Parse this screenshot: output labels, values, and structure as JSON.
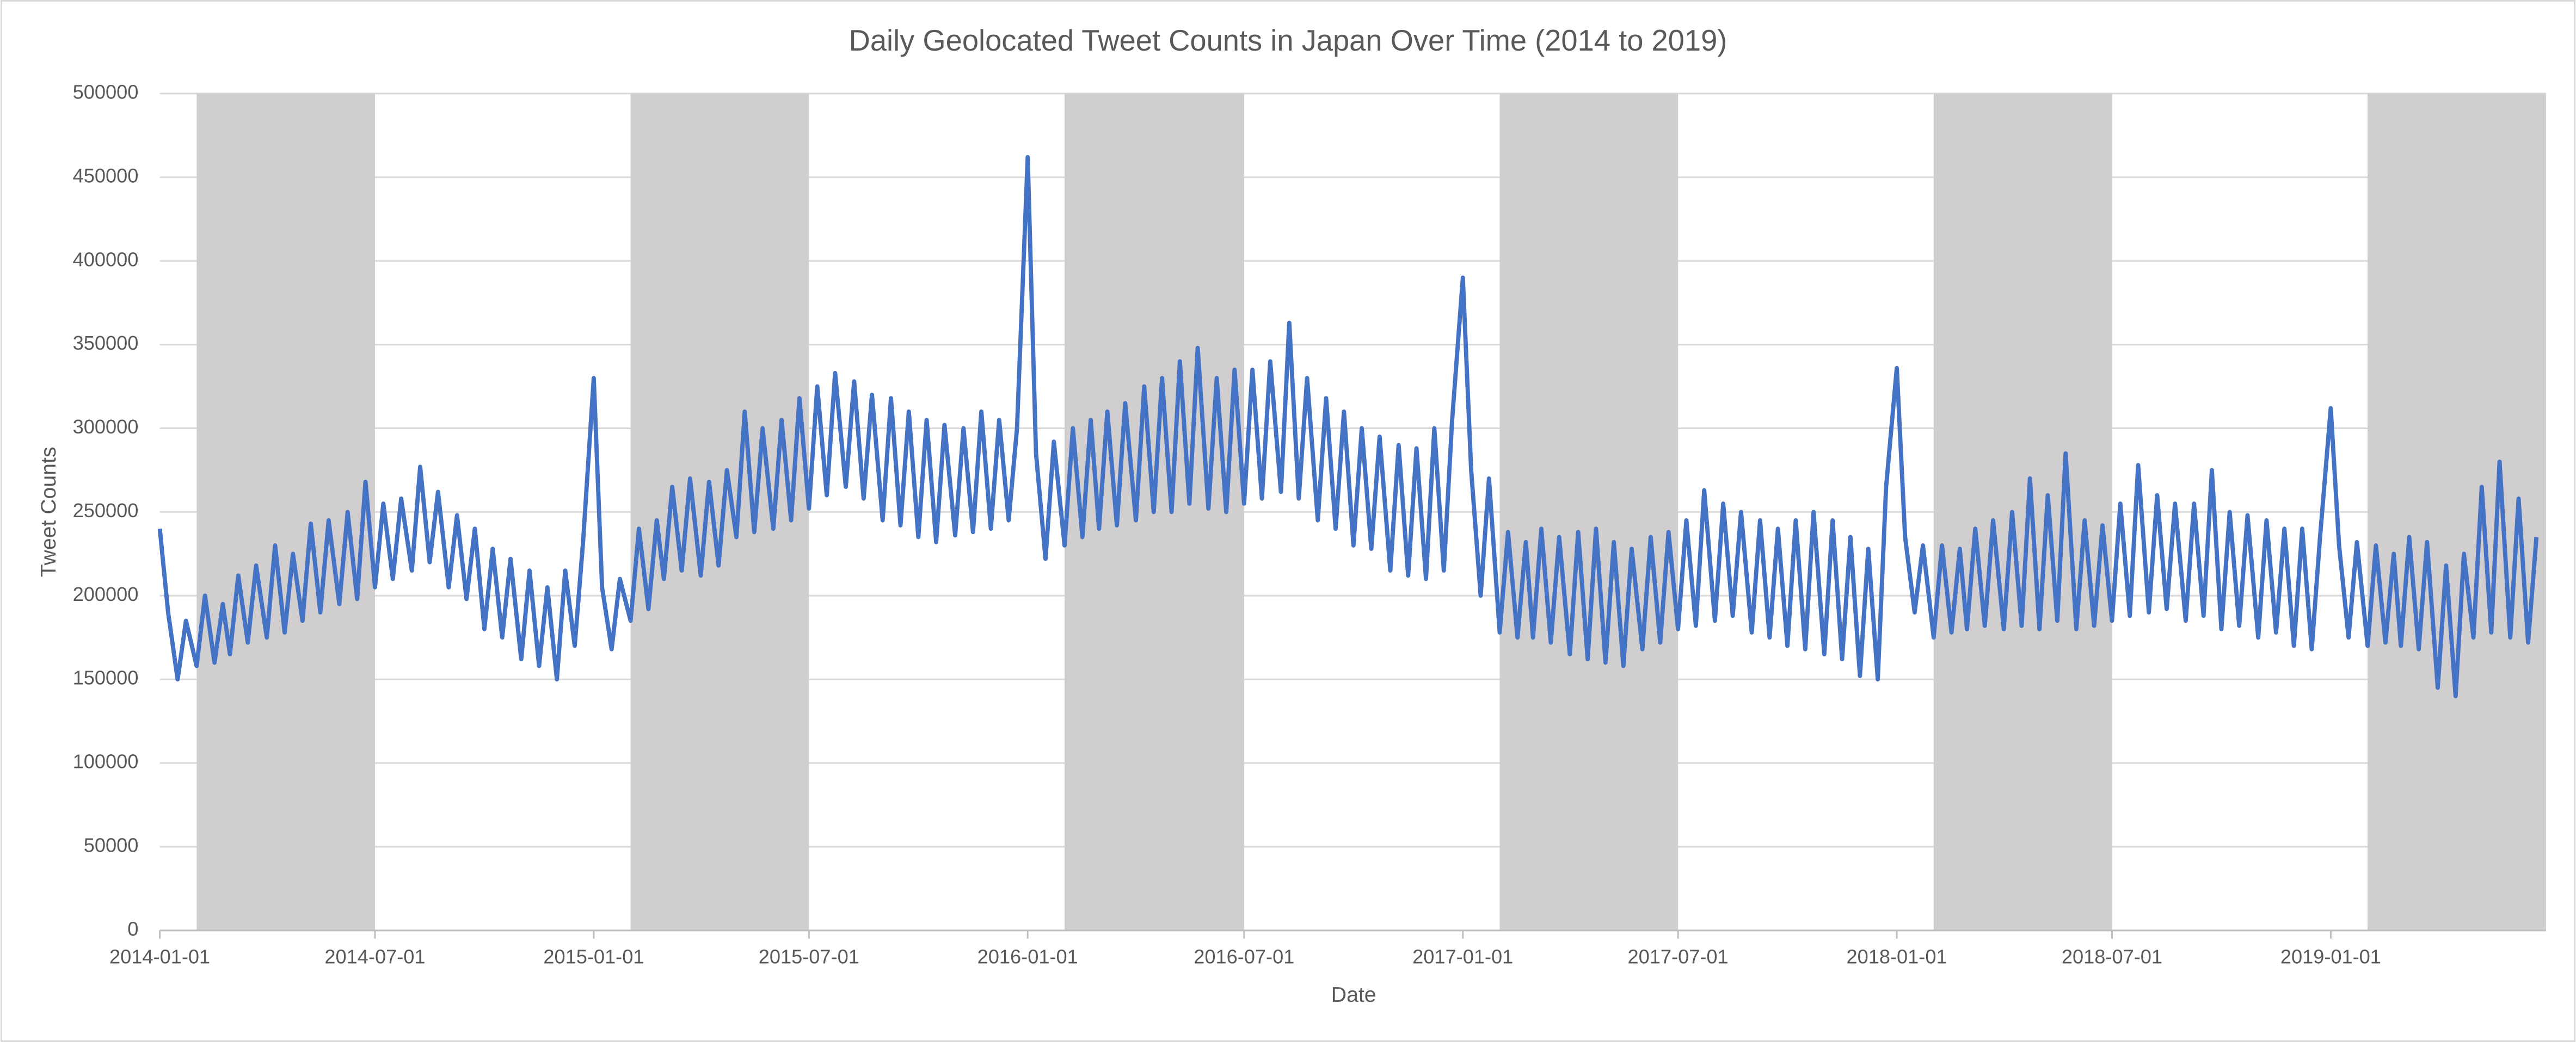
{
  "chart_data": {
    "type": "line",
    "title": "Daily Geolocated Tweet Counts in Japan Over Time (2014 to 2019)",
    "xlabel": "Date",
    "ylabel": "Tweet Counts",
    "xlim": [
      "2014-01-01",
      "2019-07-01"
    ],
    "xticks": [
      "2014-01-01",
      "2014-07-01",
      "2015-01-01",
      "2015-07-01",
      "2016-01-01",
      "2016-07-01",
      "2017-01-01",
      "2017-07-01",
      "2018-01-01",
      "2018-07-01",
      "2019-01-01"
    ],
    "ylim": [
      0,
      500000
    ],
    "yticks": [
      0,
      50000,
      100000,
      150000,
      200000,
      250000,
      300000,
      350000,
      400000,
      450000,
      500000
    ],
    "grid": true,
    "shaded_ranges": [
      [
        "2014-02-01",
        "2014-07-01"
      ],
      [
        "2015-02-01",
        "2015-07-01"
      ],
      [
        "2016-02-01",
        "2016-07-01"
      ],
      [
        "2017-02-01",
        "2017-07-01"
      ],
      [
        "2018-02-01",
        "2018-07-01"
      ],
      [
        "2019-02-01",
        "2019-07-01"
      ]
    ],
    "shade_color": "#d0cece",
    "x": [
      "2014-01-01",
      "2014-01-08",
      "2014-01-16",
      "2014-01-23",
      "2014-02-01",
      "2014-02-08",
      "2014-02-16",
      "2014-02-23",
      "2014-03-01",
      "2014-03-08",
      "2014-03-16",
      "2014-03-23",
      "2014-04-01",
      "2014-04-08",
      "2014-04-16",
      "2014-04-23",
      "2014-05-01",
      "2014-05-08",
      "2014-05-16",
      "2014-05-23",
      "2014-06-01",
      "2014-06-08",
      "2014-06-16",
      "2014-06-23",
      "2014-07-01",
      "2014-07-08",
      "2014-07-16",
      "2014-07-23",
      "2014-08-01",
      "2014-08-08",
      "2014-08-16",
      "2014-08-23",
      "2014-09-01",
      "2014-09-08",
      "2014-09-16",
      "2014-09-23",
      "2014-10-01",
      "2014-10-08",
      "2014-10-16",
      "2014-10-23",
      "2014-11-01",
      "2014-11-08",
      "2014-11-16",
      "2014-11-23",
      "2014-12-01",
      "2014-12-08",
      "2014-12-16",
      "2014-12-23",
      "2015-01-01",
      "2015-01-08",
      "2015-01-16",
      "2015-01-23",
      "2015-02-01",
      "2015-02-08",
      "2015-02-16",
      "2015-02-23",
      "2015-03-01",
      "2015-03-08",
      "2015-03-16",
      "2015-03-23",
      "2015-04-01",
      "2015-04-08",
      "2015-04-16",
      "2015-04-23",
      "2015-05-01",
      "2015-05-08",
      "2015-05-16",
      "2015-05-23",
      "2015-06-01",
      "2015-06-08",
      "2015-06-16",
      "2015-06-23",
      "2015-07-01",
      "2015-07-08",
      "2015-07-16",
      "2015-07-23",
      "2015-08-01",
      "2015-08-08",
      "2015-08-16",
      "2015-08-23",
      "2015-09-01",
      "2015-09-08",
      "2015-09-16",
      "2015-09-23",
      "2015-10-01",
      "2015-10-08",
      "2015-10-16",
      "2015-10-23",
      "2015-11-01",
      "2015-11-08",
      "2015-11-16",
      "2015-11-23",
      "2015-12-01",
      "2015-12-08",
      "2015-12-16",
      "2015-12-23",
      "2016-01-01",
      "2016-01-08",
      "2016-01-16",
      "2016-01-23",
      "2016-02-01",
      "2016-02-08",
      "2016-02-16",
      "2016-02-23",
      "2016-03-01",
      "2016-03-08",
      "2016-03-16",
      "2016-03-23",
      "2016-04-01",
      "2016-04-08",
      "2016-04-16",
      "2016-04-23",
      "2016-05-01",
      "2016-05-08",
      "2016-05-16",
      "2016-05-23",
      "2016-06-01",
      "2016-06-08",
      "2016-06-16",
      "2016-06-23",
      "2016-07-01",
      "2016-07-08",
      "2016-07-16",
      "2016-07-23",
      "2016-08-01",
      "2016-08-08",
      "2016-08-16",
      "2016-08-23",
      "2016-09-01",
      "2016-09-08",
      "2016-09-16",
      "2016-09-23",
      "2016-10-01",
      "2016-10-08",
      "2016-10-16",
      "2016-10-23",
      "2016-11-01",
      "2016-11-08",
      "2016-11-16",
      "2016-11-23",
      "2016-12-01",
      "2016-12-08",
      "2016-12-16",
      "2016-12-23",
      "2017-01-01",
      "2017-01-08",
      "2017-01-16",
      "2017-01-23",
      "2017-02-01",
      "2017-02-08",
      "2017-02-16",
      "2017-02-23",
      "2017-03-01",
      "2017-03-08",
      "2017-03-16",
      "2017-03-23",
      "2017-04-01",
      "2017-04-08",
      "2017-04-16",
      "2017-04-23",
      "2017-05-01",
      "2017-05-08",
      "2017-05-16",
      "2017-05-23",
      "2017-06-01",
      "2017-06-08",
      "2017-06-16",
      "2017-06-23",
      "2017-07-01",
      "2017-07-08",
      "2017-07-16",
      "2017-07-23",
      "2017-08-01",
      "2017-08-08",
      "2017-08-16",
      "2017-08-23",
      "2017-09-01",
      "2017-09-08",
      "2017-09-16",
      "2017-09-23",
      "2017-10-01",
      "2017-10-08",
      "2017-10-16",
      "2017-10-23",
      "2017-11-01",
      "2017-11-08",
      "2017-11-16",
      "2017-11-23",
      "2017-12-01",
      "2017-12-08",
      "2017-12-16",
      "2017-12-23",
      "2018-01-01",
      "2018-01-08",
      "2018-01-16",
      "2018-01-23",
      "2018-02-01",
      "2018-02-08",
      "2018-02-16",
      "2018-02-23",
      "2018-03-01",
      "2018-03-08",
      "2018-03-16",
      "2018-03-23",
      "2018-04-01",
      "2018-04-08",
      "2018-04-16",
      "2018-04-23",
      "2018-05-01",
      "2018-05-08",
      "2018-05-16",
      "2018-05-23",
      "2018-06-01",
      "2018-06-08",
      "2018-06-16",
      "2018-06-23",
      "2018-07-01",
      "2018-07-08",
      "2018-07-16",
      "2018-07-23",
      "2018-08-01",
      "2018-08-08",
      "2018-08-16",
      "2018-08-23",
      "2018-09-01",
      "2018-09-08",
      "2018-09-16",
      "2018-09-23",
      "2018-10-01",
      "2018-10-08",
      "2018-10-16",
      "2018-10-23",
      "2018-11-01",
      "2018-11-08",
      "2018-11-16",
      "2018-11-23",
      "2018-12-01",
      "2018-12-08",
      "2018-12-16",
      "2018-12-23",
      "2019-01-01",
      "2019-01-08",
      "2019-01-16",
      "2019-01-23",
      "2019-02-01",
      "2019-02-08",
      "2019-02-16",
      "2019-02-23",
      "2019-03-01",
      "2019-03-08",
      "2019-03-16",
      "2019-03-23",
      "2019-04-01",
      "2019-04-08",
      "2019-04-16",
      "2019-04-23",
      "2019-05-01",
      "2019-05-08",
      "2019-05-16",
      "2019-05-23",
      "2019-06-01",
      "2019-06-08",
      "2019-06-16",
      "2019-06-23"
    ],
    "series": [
      {
        "name": "Tweet Counts",
        "color": "#4472c4",
        "values": [
          240000,
          190000,
          150000,
          185000,
          158000,
          200000,
          160000,
          195000,
          165000,
          212000,
          172000,
          218000,
          175000,
          230000,
          178000,
          225000,
          185000,
          243000,
          190000,
          245000,
          195000,
          250000,
          198000,
          268000,
          205000,
          255000,
          210000,
          258000,
          215000,
          277000,
          220000,
          262000,
          205000,
          248000,
          198000,
          240000,
          180000,
          228000,
          175000,
          222000,
          162000,
          215000,
          158000,
          205000,
          150000,
          215000,
          170000,
          232000,
          330000,
          205000,
          168000,
          210000,
          185000,
          240000,
          192000,
          245000,
          210000,
          265000,
          215000,
          270000,
          212000,
          268000,
          218000,
          275000,
          235000,
          310000,
          238000,
          300000,
          240000,
          305000,
          245000,
          318000,
          252000,
          325000,
          260000,
          333000,
          265000,
          328000,
          258000,
          320000,
          245000,
          318000,
          242000,
          310000,
          235000,
          305000,
          232000,
          302000,
          236000,
          300000,
          238000,
          310000,
          240000,
          305000,
          245000,
          300000,
          462000,
          285000,
          222000,
          292000,
          230000,
          300000,
          235000,
          305000,
          240000,
          310000,
          242000,
          315000,
          245000,
          325000,
          250000,
          330000,
          250000,
          340000,
          255000,
          348000,
          252000,
          330000,
          250000,
          335000,
          255000,
          335000,
          258000,
          340000,
          262000,
          363000,
          258000,
          330000,
          245000,
          318000,
          240000,
          310000,
          230000,
          300000,
          228000,
          295000,
          215000,
          290000,
          212000,
          288000,
          210000,
          300000,
          215000,
          305000,
          390000,
          275000,
          200000,
          270000,
          178000,
          238000,
          175000,
          232000,
          175000,
          240000,
          172000,
          235000,
          165000,
          238000,
          162000,
          240000,
          160000,
          232000,
          158000,
          228000,
          168000,
          235000,
          172000,
          238000,
          180000,
          245000,
          182000,
          263000,
          185000,
          255000,
          188000,
          250000,
          178000,
          245000,
          175000,
          240000,
          170000,
          245000,
          168000,
          250000,
          165000,
          245000,
          162000,
          235000,
          152000,
          228000,
          150000,
          265000,
          336000,
          235000,
          190000,
          230000,
          175000,
          230000,
          178000,
          228000,
          180000,
          240000,
          182000,
          245000,
          180000,
          250000,
          182000,
          270000,
          180000,
          260000,
          185000,
          285000,
          180000,
          245000,
          182000,
          242000,
          185000,
          255000,
          188000,
          278000,
          190000,
          260000,
          192000,
          255000,
          185000,
          255000,
          188000,
          275000,
          180000,
          250000,
          182000,
          248000,
          175000,
          245000,
          178000,
          240000,
          170000,
          240000,
          168000,
          235000,
          312000,
          230000,
          175000,
          232000,
          170000,
          230000,
          172000,
          225000,
          170000,
          235000,
          168000,
          232000,
          145000,
          218000,
          140000,
          225000,
          175000,
          265000,
          178000,
          280000,
          175000,
          258000,
          172000,
          235000
        ]
      }
    ]
  }
}
